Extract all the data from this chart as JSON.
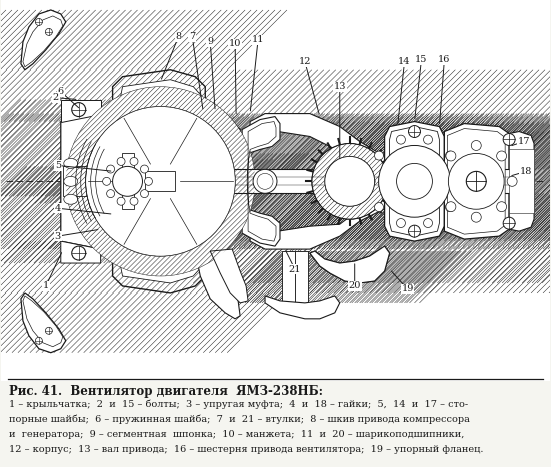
{
  "title_line": "Рис. 41.  Вентилятор двигателя  ЯМЗ-238НБ:",
  "caption_line1": "1 – крыльчатка;  2  и  15 – болты;  3 – упругая муфта;  4  и  18 – гайки;  5,  14  и  17 – сто-",
  "caption_line2": "порные шайбы;  6 – пружинная шайба;  7  и  21 – втулки;  8 – шкив привода компрессора",
  "caption_line3": "и  генератора;  9 – сегментная  шпонка;  10 – манжета;  11  и  20 – шарикоподшипники,",
  "caption_line4": "12 – корпус;  13 – вал привода;  16 – шестерня привода вентилятора;  19 – упорный фланец.",
  "bg_color": "#f5f5f0",
  "figure_width": 5.51,
  "figure_height": 4.67,
  "dpi": 100
}
